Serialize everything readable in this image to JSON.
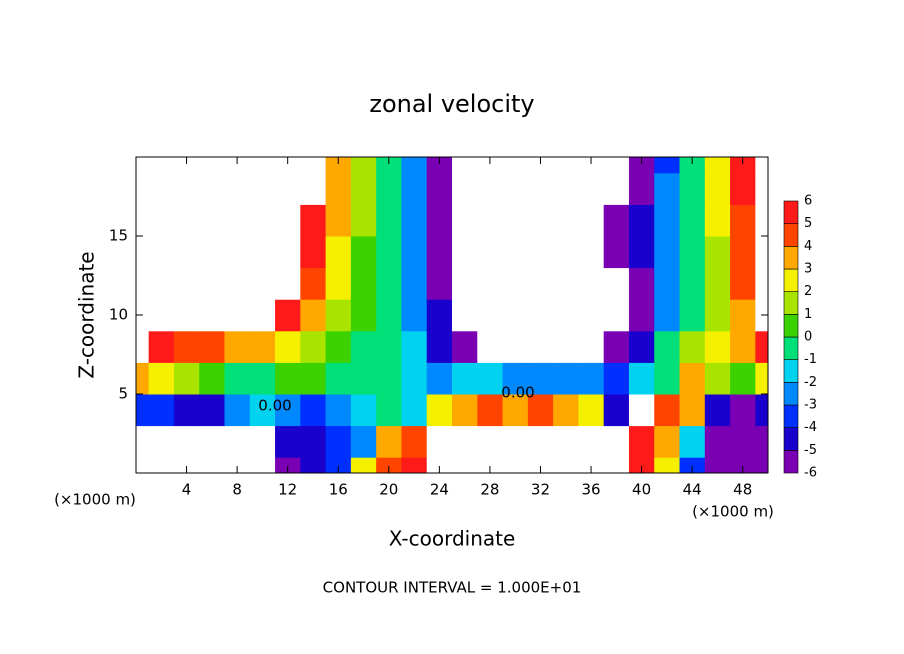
{
  "chart_data": {
    "type": "filled-contour",
    "title": "zonal velocity",
    "x_label": "X-coordinate",
    "y_label": "Z-coordinate",
    "x_unit": "(×1000 m)",
    "y_unit": "(×1000 m)",
    "footer": "CONTOUR INTERVAL = 1.000E+01",
    "contour_labels": [
      "0.00",
      "0.00"
    ],
    "xlim": [
      0,
      50
    ],
    "ylim": [
      0,
      20
    ],
    "xticks": [
      4,
      8,
      12,
      16,
      20,
      24,
      28,
      32,
      36,
      40,
      44,
      48
    ],
    "yticks": [
      5,
      10,
      15
    ],
    "x": [
      0,
      2,
      4,
      6,
      8,
      10,
      12,
      14,
      16,
      18,
      20,
      22,
      24,
      26,
      28,
      30,
      32,
      34,
      36,
      38,
      40,
      42,
      44,
      46,
      48,
      50
    ],
    "y": [
      0,
      2,
      4,
      6,
      8,
      10,
      12,
      14,
      16,
      18,
      20
    ],
    "values": [
      [
        -10,
        -12,
        -12,
        -12,
        -10,
        -8,
        -5,
        -4,
        -3,
        3,
        5,
        6,
        10,
        12,
        12,
        12,
        12,
        12,
        10,
        8,
        6,
        3,
        -3,
        -5,
        -6,
        -6
      ],
      [
        -8,
        -10,
        -12,
        -12,
        -10,
        -8,
        -4,
        -4,
        -3,
        -2,
        4,
        5,
        8,
        10,
        12,
        12,
        12,
        12,
        10,
        8,
        6,
        4,
        -1,
        -5,
        -5,
        -5
      ],
      [
        -3,
        -3,
        -4,
        -4,
        -2,
        -1,
        -2,
        -3,
        -2,
        -1,
        0,
        -1,
        3,
        4,
        5,
        4,
        5,
        4,
        3,
        -4,
        10,
        5,
        4,
        -4,
        -5,
        -4
      ],
      [
        4,
        3,
        2,
        1,
        0,
        0,
        1,
        1,
        0,
        0,
        0,
        -1,
        -2,
        -1,
        -1,
        -2,
        -2,
        -2,
        -2,
        -3,
        -1,
        0,
        4,
        2,
        1,
        3
      ],
      [
        8,
        6,
        5,
        5,
        4,
        4,
        3,
        2,
        1,
        0,
        0,
        -1,
        -4,
        -6,
        -8,
        -8,
        -8,
        -8,
        -8,
        -6,
        -4,
        0,
        2,
        3,
        4,
        6
      ],
      [
        10,
        8,
        10,
        10,
        10,
        8,
        6,
        4,
        2,
        1,
        0,
        -2,
        -4,
        -8,
        -12,
        -15,
        -15,
        -12,
        -10,
        -8,
        -5,
        -2,
        0,
        2,
        4,
        8
      ],
      [
        10,
        10,
        10,
        10,
        10,
        10,
        8,
        5,
        3,
        1,
        0,
        -2,
        -5,
        -8,
        -15,
        -15,
        -15,
        -12,
        -8,
        -7,
        -5,
        -2,
        0,
        2,
        5,
        8
      ],
      [
        10,
        10,
        12,
        12,
        12,
        12,
        10,
        6,
        3,
        1,
        0,
        -2,
        -5,
        -10,
        -15,
        -15,
        -15,
        -12,
        -8,
        -6,
        -4,
        -2,
        0,
        2,
        5,
        8
      ],
      [
        12,
        12,
        12,
        12,
        12,
        12,
        12,
        6,
        4,
        2,
        0,
        -2,
        -5,
        -12,
        -15,
        -15,
        -15,
        -15,
        -10,
        -5,
        -4,
        -2,
        0,
        3,
        5,
        8
      ],
      [
        12,
        12,
        12,
        12,
        12,
        12,
        12,
        7,
        4,
        2,
        0,
        -2,
        -5,
        -12,
        -15,
        -15,
        -15,
        -15,
        -12,
        -8,
        -5,
        -2,
        0,
        3,
        6,
        10
      ],
      [
        12,
        12,
        12,
        12,
        12,
        12,
        12,
        7,
        4,
        2,
        0,
        -2,
        -5,
        -12,
        -15,
        -15,
        -15,
        -15,
        -12,
        -8,
        -5,
        -3,
        0,
        3,
        6,
        10
      ]
    ],
    "levels": [
      -6,
      -5,
      -4,
      -3,
      -2,
      -1,
      0,
      1,
      2,
      3,
      4,
      5,
      6
    ],
    "colors": [
      "#7a00b4",
      "#1a00cc",
      "#0030ff",
      "#0088ff",
      "#00d2f0",
      "#00e078",
      "#3cd200",
      "#a8e400",
      "#f4f000",
      "#ffa800",
      "#ff4400",
      "#ff1a1a",
      "#f08a8a"
    ],
    "out_of_range_color": "#ffffff"
  }
}
